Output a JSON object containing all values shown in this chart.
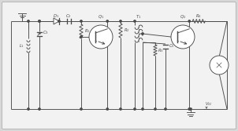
{
  "bg_color": "#f2f2f2",
  "line_color": "#4a4a4a",
  "border_color": "#bbbbbb",
  "fig_bg": "#d8d8d8"
}
